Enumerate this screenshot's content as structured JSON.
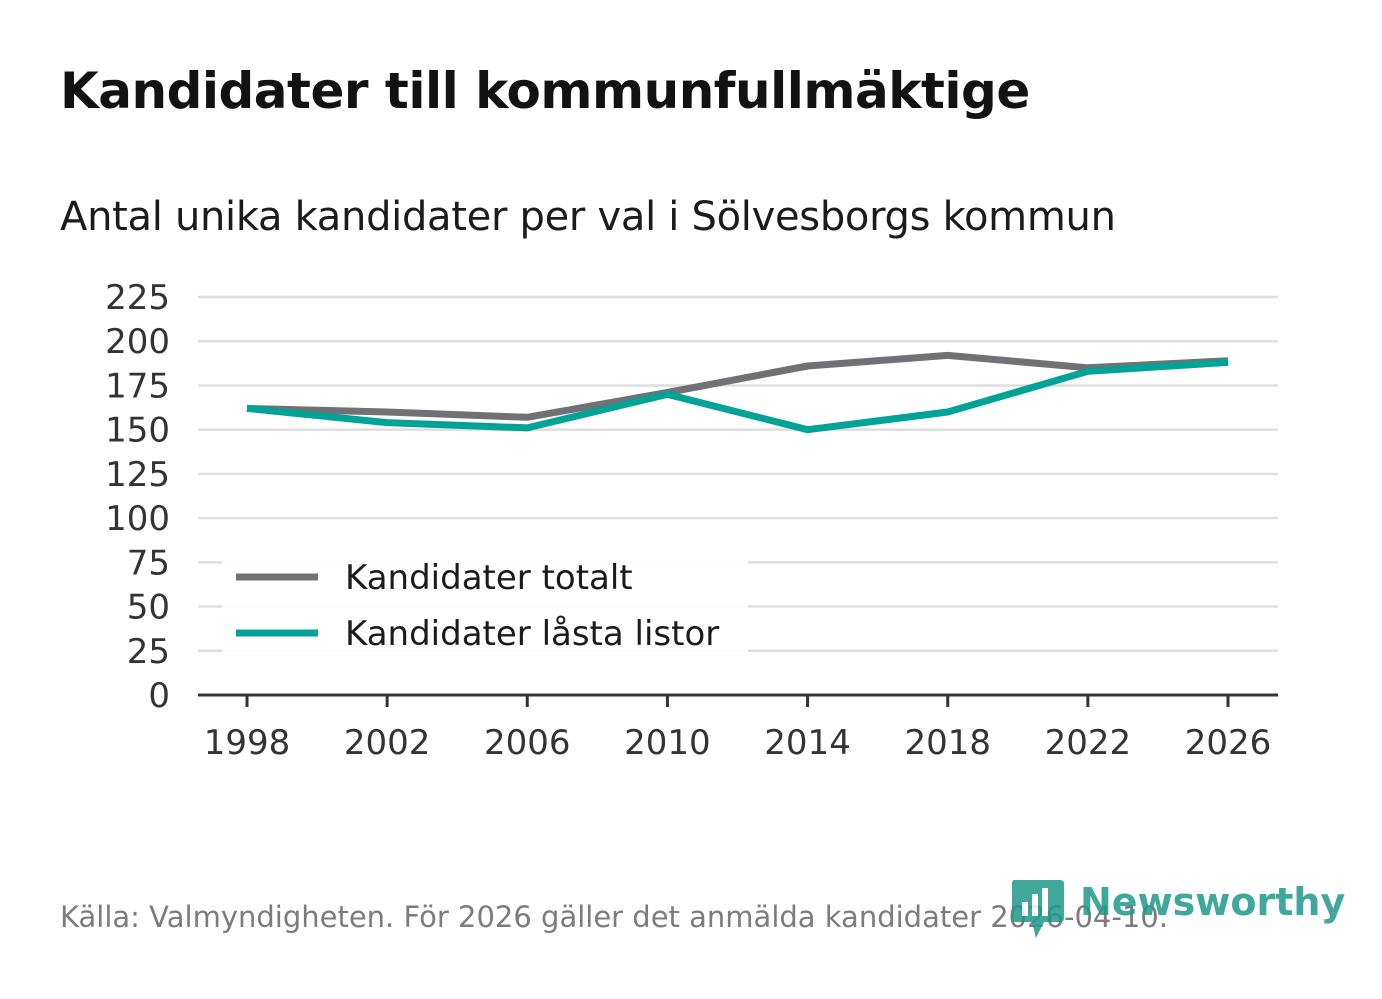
{
  "header": {
    "title": "Kandidater till kommunfullmäktige",
    "subtitle": "Antal unika kandidater per val i Sölvesborgs kommun"
  },
  "footer": {
    "source": "Källa: Valmyndigheten. För 2026 gäller det anmälda kandidater 2026-04-10.",
    "brand": "Newsworthy"
  },
  "colors": {
    "total": "#717075",
    "locked": "#00a396",
    "grid": "#dedede",
    "axis": "#333333",
    "brand": "#1f9a8a"
  },
  "chart_data": {
    "type": "line",
    "title": "Kandidater till kommunfullmäktige",
    "subtitle": "Antal unika kandidater per val i Sölvesborgs kommun",
    "xlabel": "",
    "ylabel": "",
    "x": [
      1998,
      2002,
      2006,
      2010,
      2014,
      2018,
      2022,
      2026
    ],
    "x_ticks": [
      "1998",
      "2002",
      "2006",
      "2010",
      "2014",
      "2018",
      "2022",
      "2026"
    ],
    "y_ticks": [
      "0",
      "25",
      "50",
      "75",
      "100",
      "125",
      "150",
      "175",
      "200",
      "225"
    ],
    "ylim": [
      0,
      225
    ],
    "grid": true,
    "legend_position": "bottom-left",
    "series": [
      {
        "name": "Kandidater totalt",
        "color": "#717075",
        "values": [
          162,
          160,
          157,
          171,
          186,
          192,
          185,
          189
        ]
      },
      {
        "name": "Kandidater låsta listor",
        "color": "#00a396",
        "values": [
          162,
          154,
          151,
          170,
          150,
          160,
          183,
          188
        ]
      }
    ]
  }
}
